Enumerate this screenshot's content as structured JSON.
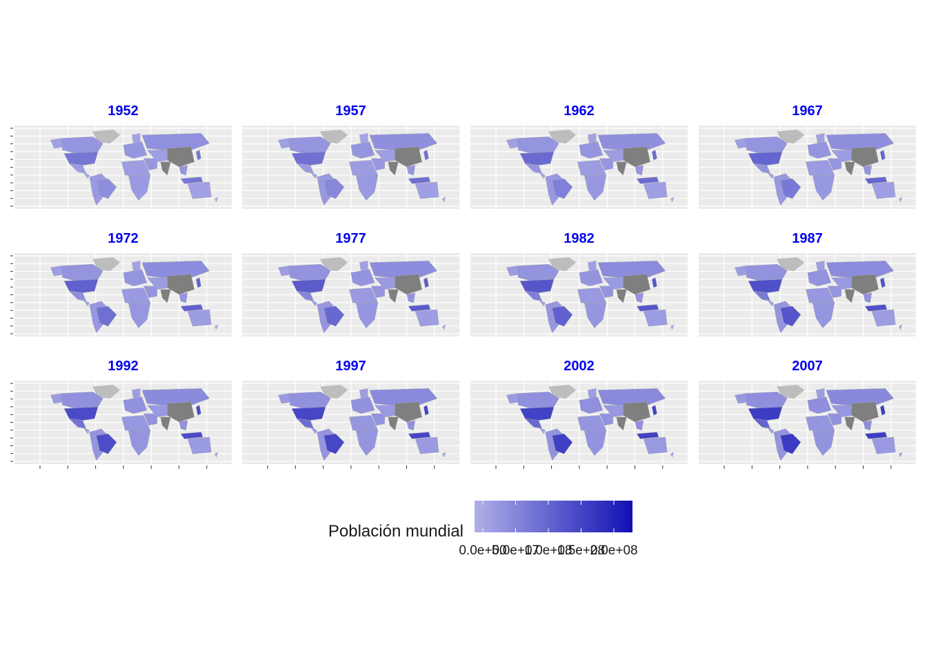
{
  "chart_data": {
    "type": "heatmap",
    "subtype": "choropleth-world-map-facets",
    "panels": [
      {
        "year": "1952",
        "brazil": 0.21,
        "mexico": 0.12,
        "usa": 0.36,
        "indonesia": 0.36,
        "japan": 0.36
      },
      {
        "year": "1957",
        "brazil": 0.25,
        "mexico": 0.14,
        "usa": 0.4,
        "indonesia": 0.4,
        "japan": 0.4
      },
      {
        "year": "1962",
        "brazil": 0.3,
        "mexico": 0.16,
        "usa": 0.44,
        "indonesia": 0.44,
        "japan": 0.44
      },
      {
        "year": "1967",
        "brazil": 0.35,
        "mexico": 0.19,
        "usa": 0.47,
        "indonesia": 0.47,
        "japan": 0.47
      },
      {
        "year": "1972",
        "brazil": 0.4,
        "mexico": 0.22,
        "usa": 0.5,
        "indonesia": 0.5,
        "japan": 0.5
      },
      {
        "year": "1977",
        "brazil": 0.45,
        "mexico": 0.26,
        "usa": 0.53,
        "indonesia": 0.53,
        "japan": 0.53
      },
      {
        "year": "1982",
        "brazil": 0.5,
        "mexico": 0.3,
        "usa": 0.56,
        "indonesia": 0.56,
        "japan": 0.56
      },
      {
        "year": "1987",
        "brazil": 0.56,
        "mexico": 0.34,
        "usa": 0.6,
        "indonesia": 0.6,
        "japan": 0.6
      },
      {
        "year": "1992",
        "brazil": 0.62,
        "mexico": 0.38,
        "usa": 0.63,
        "indonesia": 0.63,
        "japan": 0.63
      },
      {
        "year": "1997",
        "brazil": 0.66,
        "mexico": 0.42,
        "usa": 0.66,
        "indonesia": 0.66,
        "japan": 0.66
      },
      {
        "year": "2002",
        "brazil": 0.7,
        "mexico": 0.45,
        "usa": 0.69,
        "indonesia": 0.69,
        "japan": 0.69
      },
      {
        "year": "2007",
        "brazil": 0.74,
        "mexico": 0.48,
        "usa": 0.72,
        "indonesia": 0.72,
        "japan": 0.72
      }
    ],
    "legend": {
      "title": "Población mundial",
      "placement": "bottom",
      "low_color": "#b0b0e8",
      "high_color": "#1010b4",
      "ticks": [
        "0.0e+00",
        "5.0e+07",
        "1.0e+08",
        "1.5e+08",
        "2.0e+08"
      ]
    },
    "colors": {
      "no_data": "#bdbdbd",
      "china_india": "#7f7f7f",
      "panel_background": "#ebebeb",
      "grid": "#ffffff",
      "panel_title": "#0000ee"
    },
    "grid": true
  }
}
